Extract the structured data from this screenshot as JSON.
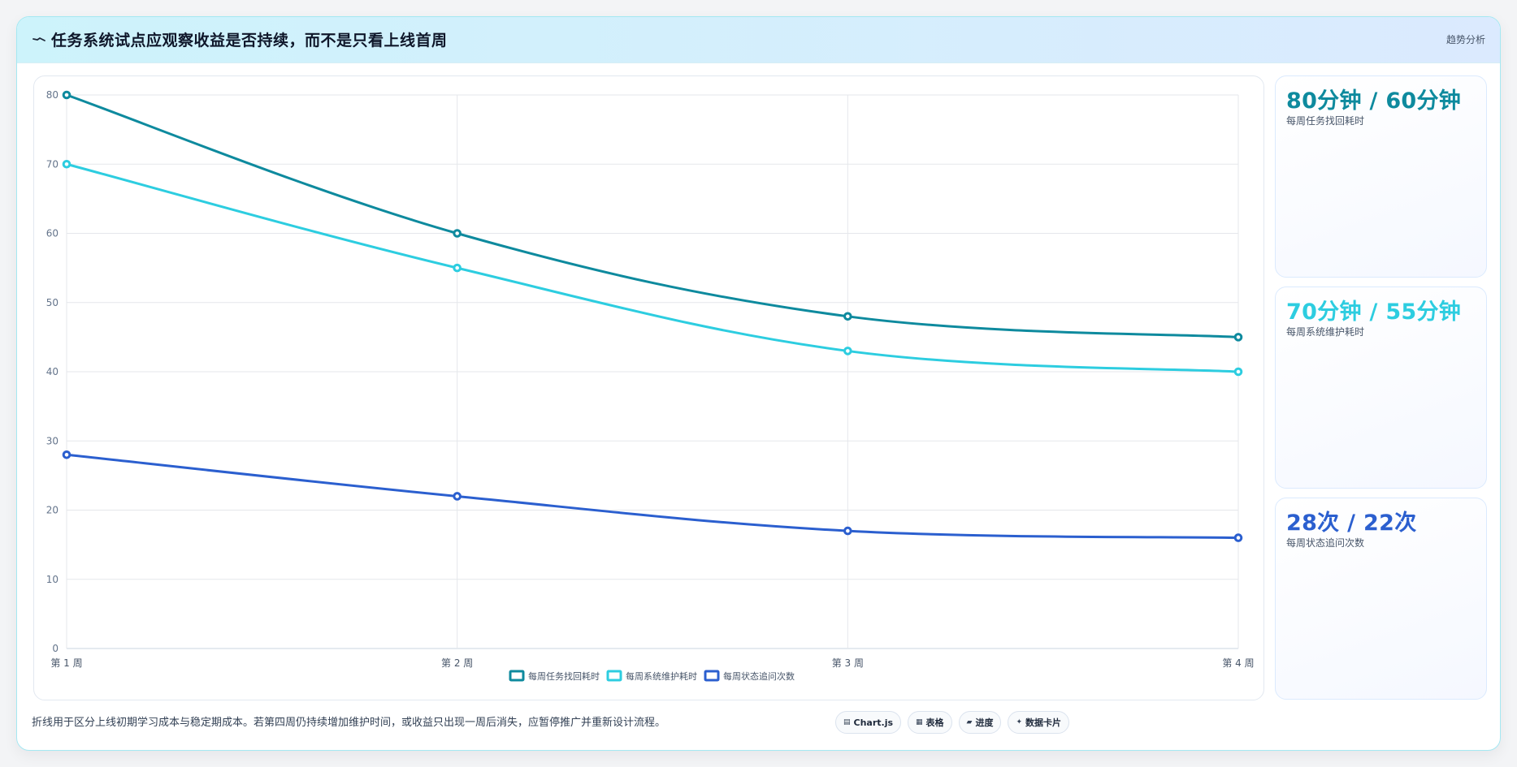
{
  "header": {
    "icon": "trend-line-icon",
    "title": "任务系统试点应观察收益是否持续，而不是只看上线首周",
    "tag": "趋势分析"
  },
  "chart_data": {
    "type": "line",
    "categories": [
      "第 1 周",
      "第 2 周",
      "第 3 周",
      "第 4 周"
    ],
    "series": [
      {
        "name": "每周任务找回耗时",
        "values": [
          80,
          60,
          48,
          45
        ],
        "color": "#0e8a9e"
      },
      {
        "name": "每周系统维护耗时",
        "values": [
          70,
          55,
          43,
          40
        ],
        "color": "#2dcde0"
      },
      {
        "name": "每周状态追问次数",
        "values": [
          28,
          22,
          17,
          16
        ],
        "color": "#2b5fcf"
      }
    ],
    "ylim": [
      0,
      80
    ],
    "yticks": [
      0,
      10,
      20,
      30,
      40,
      50,
      60,
      70,
      80
    ],
    "grid": true,
    "legend": "bottom-center"
  },
  "kpis": [
    {
      "value": "80分钟 / 60分钟",
      "label": "每周任务找回耗时",
      "color": "#0e8a9e"
    },
    {
      "value": "70分钟 / 55分钟",
      "label": "每周系统维护耗时",
      "color": "#2dcde0"
    },
    {
      "value": "28次 / 22次",
      "label": "每周状态追问次数",
      "color": "#2b5fcf"
    }
  ],
  "footer": {
    "note": "折线用于区分上线初期学习成本与稳定期成本。若第四周仍持续增加维护时间，或收益只出现一周后消失，应暂停推广并重新设计流程。",
    "chips": [
      {
        "icon": "chart-icon",
        "label": "Chart.js"
      },
      {
        "icon": "table-icon",
        "label": "表格"
      },
      {
        "icon": "progress-icon",
        "label": "进度"
      },
      {
        "icon": "sparkle-icon",
        "label": "数据卡片"
      }
    ]
  }
}
